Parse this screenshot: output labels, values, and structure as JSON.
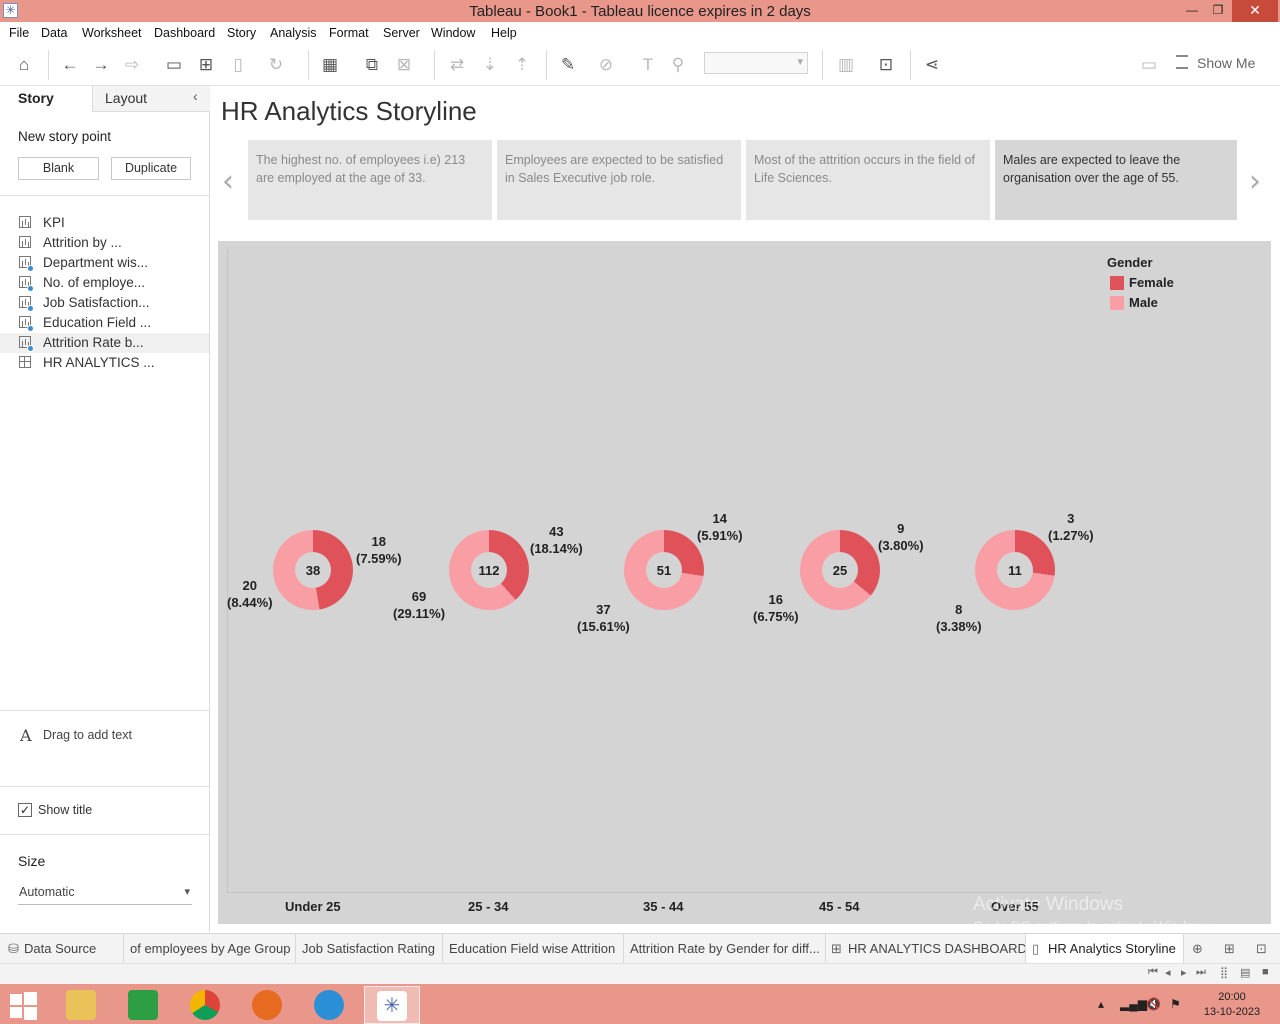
{
  "window": {
    "title": "Tableau - Book1 - Tableau licence expires in 2 days",
    "minimize": "—",
    "maximize": "❐",
    "close": "✕"
  },
  "menu": [
    "File",
    "Data",
    "Worksheet",
    "Dashboard",
    "Story",
    "Analysis",
    "Format",
    "Server",
    "Window",
    "Help"
  ],
  "toolbar": {
    "show_me": "Show Me"
  },
  "left_pane": {
    "tab_story": "Story",
    "tab_layout": "Layout",
    "new_story_point": "New story point",
    "blank_button": "Blank",
    "duplicate_button": "Duplicate",
    "sheets": [
      {
        "label": "KPI",
        "type": "sheet",
        "dot": false
      },
      {
        "label": "Attrition by ...",
        "type": "sheet",
        "dot": false
      },
      {
        "label": "Department wis...",
        "type": "sheet",
        "dot": true
      },
      {
        "label": "No. of employe...",
        "type": "sheet",
        "dot": true
      },
      {
        "label": "Job Satisfaction...",
        "type": "sheet",
        "dot": true
      },
      {
        "label": "Education Field ...",
        "type": "sheet",
        "dot": true
      },
      {
        "label": "Attrition Rate b...",
        "type": "sheet",
        "dot": true
      },
      {
        "label": "HR ANALYTICS ...",
        "type": "dashboard",
        "dot": false
      }
    ],
    "drag_text": "Drag to add text",
    "show_title": "Show title",
    "show_title_checked": true,
    "size_label": "Size",
    "size_value": "Automatic"
  },
  "story": {
    "title": "HR Analytics Storyline",
    "captions": [
      "The highest no. of employees i.e) 213 are employed at the age of 33.",
      "Employees are expected to be satisfied in Sales Executive job role.",
      "Most of the attrition occurs in the field of Life Sciences.",
      "Males are expected to leave the organisation over the age of 55."
    ],
    "selected_caption": 3
  },
  "chart_data": {
    "type": "pie",
    "subtype": "donut",
    "legend_title": "Gender",
    "legend_placement": "top-right",
    "series_colors": {
      "Female": "#e0525a",
      "Male": "#fa9ea6"
    },
    "categories": [
      "Under 25",
      "25 - 34",
      "35 - 44",
      "45 - 54",
      "Over 55"
    ],
    "totals": [
      38,
      112,
      51,
      25,
      11
    ],
    "series": [
      {
        "name": "Female",
        "values": [
          18,
          43,
          14,
          9,
          3
        ],
        "labels": [
          "(7.59%)",
          "(18.14%)",
          "(5.91%)",
          "(3.80%)",
          "(1.27%)"
        ]
      },
      {
        "name": "Male",
        "values": [
          20,
          69,
          37,
          16,
          8
        ],
        "labels": [
          "(8.44%)",
          "(29.11%)",
          "(15.61%)",
          "(6.75%)",
          "(3.38%)"
        ]
      }
    ]
  },
  "watermark": {
    "line1": "Activate Windows",
    "line2": "Go to PC settings to activate Windows."
  },
  "sheet_tabs": {
    "data_source": "Data Source",
    "tabs": [
      "of employees by Age Group",
      "Job Satisfaction Rating",
      "Education Field wise Attrition",
      "Attrition Rate by Gender for diff...",
      "HR ANALYTICS DASHBOARD",
      "HR Analytics Storyline"
    ],
    "active_tab": "HR Analytics Storyline"
  },
  "taskbar": {
    "time": "20:00",
    "date": "13-10-2023"
  }
}
